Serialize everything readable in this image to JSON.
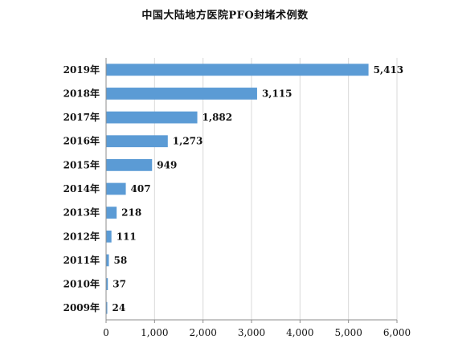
{
  "chart_data": {
    "type": "bar",
    "orientation": "horizontal",
    "title": "中国大陆地方医院PFO封堵术例数",
    "categories": [
      "2019年",
      "2018年",
      "2017年",
      "2016年",
      "2015年",
      "2014年",
      "2013年",
      "2012年",
      "2011年",
      "2010年",
      "2009年"
    ],
    "values": [
      5413,
      3115,
      1882,
      1273,
      949,
      407,
      218,
      111,
      58,
      37,
      24
    ],
    "value_labels": [
      "5,413",
      "3,115",
      "1,882",
      "1,273",
      "949",
      "407",
      "218",
      "111",
      "58",
      "37",
      "24"
    ],
    "x_ticks": [
      0,
      1000,
      2000,
      3000,
      4000,
      5000,
      6000
    ],
    "x_tick_labels": [
      "0",
      "1,000",
      "2,000",
      "3,000",
      "4,000",
      "5,000",
      "6,000"
    ],
    "xlim": [
      0,
      6000
    ],
    "grid": "vertical",
    "legend": "none",
    "bar_color": "#5b9bd5",
    "grid_color": "#d9d9d9",
    "axis_color": "#8c8c8c"
  }
}
